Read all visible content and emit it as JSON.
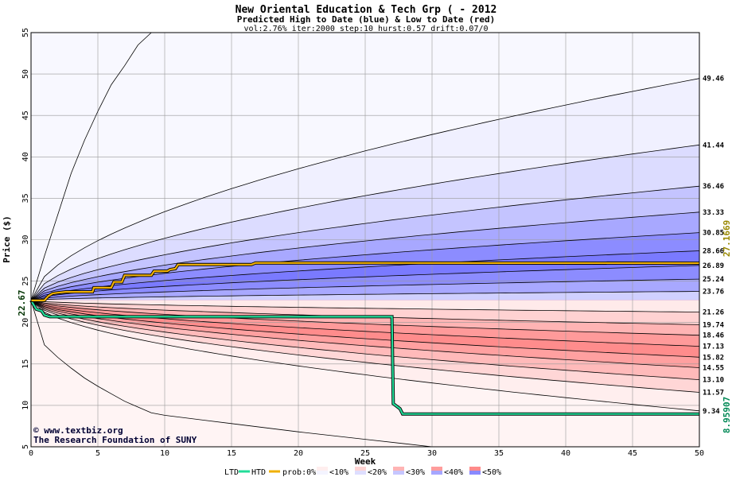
{
  "chart_data": {
    "type": "area",
    "title": "New Oriental Education & Tech Grp ( - 2012",
    "subtitle": "Predicted High to Date (blue) &  Low to Date (red)",
    "params": "vol:2.76% iter:2000 step:10 hurst:0.57 drift:0.07/0",
    "xlabel": "Week",
    "ylabel": "Price ($)",
    "xlim": [
      0,
      50
    ],
    "ylim": [
      5,
      55
    ],
    "x_ticks": [
      "0",
      "5",
      "10",
      "15",
      "20",
      "25",
      "30",
      "35",
      "40",
      "45",
      "50"
    ],
    "y_ticks": [
      "5",
      "10",
      "15",
      "20",
      "25",
      "30",
      "35",
      "40",
      "45",
      "50",
      "55"
    ],
    "grid": true,
    "start_price": 22.67,
    "start_label": "22.67",
    "htd_final_label": "27.1669",
    "ltd_final_label": "8.95907",
    "right_labels": [
      "49.46",
      "41.44",
      "36.46",
      "33.33",
      "30.85",
      "28.66",
      "26.89",
      "25.24",
      "23.76",
      "21.26",
      "19.74",
      "18.46",
      "17.13",
      "15.82",
      "14.55",
      "13.10",
      "11.57",
      "9.34"
    ],
    "high_quantiles": [
      {
        "end": 49.46,
        "fill": "#f4f4ff"
      },
      {
        "end": 41.44,
        "fill": "#dedeff"
      },
      {
        "end": 36.46,
        "fill": "#c6c6ff"
      },
      {
        "end": 33.33,
        "fill": "#a6a6ff"
      },
      {
        "end": 30.85,
        "fill": "#8a8aff"
      },
      {
        "end": 28.66,
        "fill": "#7b7bff"
      },
      {
        "end": 26.89,
        "fill": "#8a8aff"
      },
      {
        "end": 25.24,
        "fill": "#a6a6ff"
      },
      {
        "end": 23.76,
        "fill": "#c6c6ff"
      }
    ],
    "low_quantiles": [
      {
        "end": 21.26,
        "fill": "#ffeeee"
      },
      {
        "end": 19.74,
        "fill": "#ffd4d4"
      },
      {
        "end": 18.46,
        "fill": "#ffb4b4"
      },
      {
        "end": 17.13,
        "fill": "#ff9c9c"
      },
      {
        "end": 15.82,
        "fill": "#ff8a8a"
      },
      {
        "end": 14.55,
        "fill": "#ff9c9c"
      },
      {
        "end": 13.1,
        "fill": "#ffb4b4"
      },
      {
        "end": 11.57,
        "fill": "#ffd4d4"
      },
      {
        "end": 9.34,
        "fill": "#ffeeee"
      }
    ],
    "outer_high_curve": {
      "x": [
        0,
        1,
        2,
        3,
        4,
        5,
        6,
        7,
        8,
        9
      ],
      "y": [
        22.67,
        28,
        33,
        38,
        42,
        45.5,
        48.7,
        51,
        53.5,
        55.5
      ]
    },
    "outer_low_curve": {
      "x": [
        0,
        1,
        2,
        3,
        4,
        5,
        6,
        7,
        8,
        9,
        10,
        15,
        20,
        25,
        30
      ],
      "y": [
        22.67,
        17.3,
        15.8,
        14.5,
        13.3,
        12.3,
        11.4,
        10.5,
        9.8,
        9.1,
        8.8,
        7.8,
        6.8,
        5.9,
        5.0
      ]
    },
    "htd_series": {
      "name": "HTD",
      "color": "#f0b000",
      "x": [
        0,
        0.5,
        1.0,
        1.3,
        1.6,
        2.0,
        2.6,
        4.6,
        4.7,
        6.0,
        6.2,
        6.8,
        7.0,
        9.0,
        9.2,
        10.2,
        10.4,
        10.8,
        11.0,
        16.5,
        16.8,
        50
      ],
      "y": [
        22.67,
        22.67,
        22.67,
        23.2,
        23.5,
        23.6,
        23.7,
        23.7,
        24.2,
        24.2,
        24.9,
        24.9,
        25.7,
        25.7,
        26.2,
        26.2,
        26.4,
        26.5,
        27.0,
        27.0,
        27.2,
        27.17
      ]
    },
    "ltd_series": {
      "name": "LTD",
      "color": "#22dd99",
      "x": [
        0,
        0.4,
        0.8,
        1.0,
        1.4,
        1.8,
        27.0,
        27.1,
        27.6,
        27.8,
        50
      ],
      "y": [
        22.67,
        21.6,
        21.4,
        20.9,
        20.7,
        20.7,
        20.7,
        10.2,
        9.6,
        8.96,
        8.96
      ]
    },
    "legend": {
      "ltd": "LTD",
      "htd": "HTD",
      "prob": "prob:0%",
      "items": [
        {
          "label": "<10%",
          "fill_top": "#ffeeee",
          "fill_bottom": "#f4f4ff"
        },
        {
          "label": "<20%",
          "fill_top": "#ffd4d4",
          "fill_bottom": "#dedeff"
        },
        {
          "label": "<30%",
          "fill_top": "#ffb4b4",
          "fill_bottom": "#c6c6ff"
        },
        {
          "label": "<40%",
          "fill_top": "#ff9c9c",
          "fill_bottom": "#a6a6ff"
        },
        {
          "label": "<50%",
          "fill_top": "#ff8a8a",
          "fill_bottom": "#8a8aff"
        }
      ]
    },
    "credits": [
      "© www.textbiz.org",
      "The Research Foundation of SUNY"
    ]
  }
}
